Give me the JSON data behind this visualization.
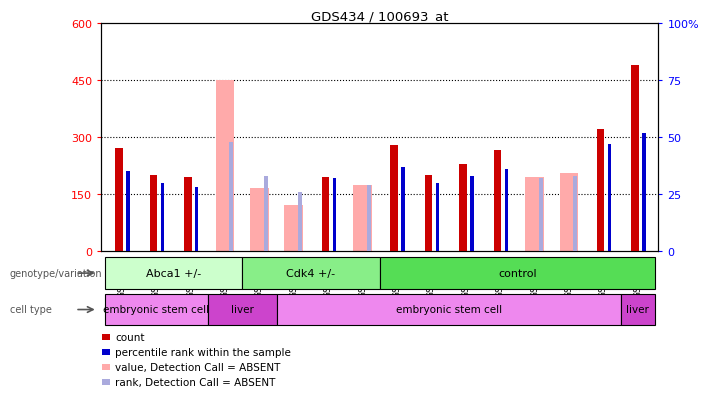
{
  "title": "GDS434 / 100693_at",
  "samples": [
    "GSM9269",
    "GSM9270",
    "GSM9271",
    "GSM9283",
    "GSM9284",
    "GSM9278",
    "GSM9279",
    "GSM9280",
    "GSM9272",
    "GSM9273",
    "GSM9274",
    "GSM9275",
    "GSM9276",
    "GSM9277",
    "GSM9281",
    "GSM9282"
  ],
  "count_values": [
    270,
    200,
    195,
    0,
    0,
    0,
    195,
    0,
    280,
    200,
    230,
    265,
    0,
    0,
    320,
    490
  ],
  "rank_values": [
    35,
    30,
    28,
    0,
    0,
    0,
    32,
    0,
    37,
    30,
    33,
    36,
    0,
    0,
    47,
    52
  ],
  "absent_count": [
    0,
    0,
    0,
    450,
    165,
    120,
    0,
    175,
    0,
    0,
    0,
    0,
    195,
    205,
    0,
    0
  ],
  "absent_rank": [
    0,
    0,
    0,
    48,
    33,
    26,
    0,
    29,
    0,
    0,
    0,
    0,
    32,
    33,
    0,
    0
  ],
  "count_color": "#cc0000",
  "rank_color": "#0000cc",
  "absent_count_color": "#ffaaaa",
  "absent_rank_color": "#aaaadd",
  "ylim_left": [
    0,
    600
  ],
  "ylim_right": [
    0,
    100
  ],
  "yticks_left": [
    0,
    150,
    300,
    450,
    600
  ],
  "yticks_right": [
    0,
    25,
    50,
    75,
    100
  ],
  "genotype_groups": [
    {
      "label": "Abca1 +/-",
      "start": 0,
      "end": 4,
      "color": "#ccffcc"
    },
    {
      "label": "Cdk4 +/-",
      "start": 4,
      "end": 8,
      "color": "#88ee88"
    },
    {
      "label": "control",
      "start": 8,
      "end": 16,
      "color": "#55dd55"
    }
  ],
  "cell_type_groups": [
    {
      "label": "embryonic stem cell",
      "start": 0,
      "end": 3,
      "color": "#ee88ee"
    },
    {
      "label": "liver",
      "start": 3,
      "end": 5,
      "color": "#cc44cc"
    },
    {
      "label": "embryonic stem cell",
      "start": 5,
      "end": 15,
      "color": "#ee88ee"
    },
    {
      "label": "liver",
      "start": 15,
      "end": 16,
      "color": "#cc44cc"
    }
  ],
  "legend_items": [
    {
      "label": "count",
      "color": "#cc0000",
      "marker_color": "#cc0000"
    },
    {
      "label": "percentile rank within the sample",
      "color": "#000000",
      "marker_color": "#0000cc"
    },
    {
      "label": "value, Detection Call = ABSENT",
      "color": "#000000",
      "marker_color": "#ffaaaa"
    },
    {
      "label": "rank, Detection Call = ABSENT",
      "color": "#000000",
      "marker_color": "#aaaadd"
    }
  ]
}
